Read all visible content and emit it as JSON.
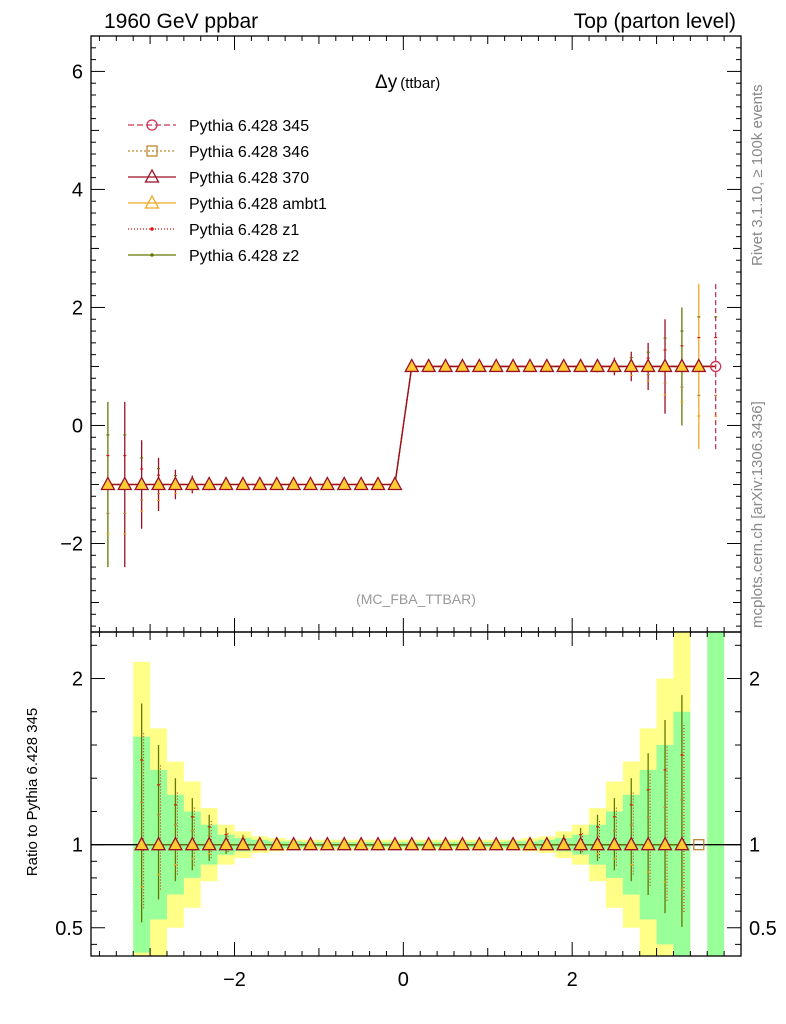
{
  "header": {
    "left": "1960 GeV ppbar",
    "right": "Top (parton level)"
  },
  "side_text": {
    "rivet": "Rivet 3.1.10, ≥ 100k events",
    "mcplots": "mcplots.cern.ch [arXiv:1306.3436]"
  },
  "colors": {
    "band_green": "#99ff99",
    "band_yellow": "#ffff88",
    "s345": "#cc3355",
    "s346": "#bb8833",
    "s370": "#991122",
    "ambt1": "#eeaa22",
    "z1": "#dd1111",
    "z2": "#667700"
  },
  "chart_data": [
    {
      "type": "line",
      "title": "Δy",
      "title_sub": "(ttbar)",
      "analysis_label": "(MC_FBA_TTBAR)",
      "xlim": [
        -3.7,
        4.0
      ],
      "ylim": [
        -3.5,
        6.6
      ],
      "yticks": [
        -2,
        0,
        2,
        4,
        6
      ],
      "grid": false,
      "legend_position": "top-left",
      "x": [
        -3.5,
        -3.3,
        -3.1,
        -2.9,
        -2.7,
        -2.5,
        -2.3,
        -2.1,
        -1.9,
        -1.7,
        -1.5,
        -1.3,
        -1.1,
        -0.9,
        -0.7,
        -0.5,
        -0.3,
        -0.1,
        0.1,
        0.3,
        0.5,
        0.7,
        0.9,
        1.1,
        1.3,
        1.5,
        1.7,
        1.9,
        2.1,
        2.3,
        2.5,
        2.7,
        2.9,
        3.1,
        3.3,
        3.5,
        3.7
      ],
      "series": [
        {
          "name": "Pythia 6.428 345",
          "key": "s345",
          "dash": "6,3",
          "marker": "circle"
        },
        {
          "name": "Pythia 6.428 346",
          "key": "s346",
          "dash": "2,2",
          "marker": "square"
        },
        {
          "name": "Pythia 6.428 370",
          "key": "s370",
          "dash": "",
          "marker": "triangle"
        },
        {
          "name": "Pythia 6.428 ambt1",
          "key": "ambt1",
          "dash": "",
          "marker": "triangle"
        },
        {
          "name": "Pythia 6.428 z1",
          "key": "z1",
          "dash": "1,2",
          "marker": "dot"
        },
        {
          "name": "Pythia 6.428 z2",
          "key": "z2",
          "dash": "",
          "marker": "dot"
        }
      ],
      "main_points": [
        {
          "x": -3.5,
          "y": -1,
          "err": 1.4,
          "series": "z2"
        },
        {
          "x": -3.3,
          "y": -1,
          "err": 1.4,
          "series": "s370"
        },
        {
          "x": -3.1,
          "y": -1,
          "err": 0.75,
          "series": "s370"
        },
        {
          "x": -2.9,
          "y": -1,
          "err": 0.45,
          "series": "s370"
        },
        {
          "x": -2.7,
          "y": -1,
          "err": 0.25,
          "series": "s370"
        },
        {
          "x": -2.5,
          "y": -1,
          "err": 0.15,
          "series": "s370"
        },
        {
          "x": -2.3,
          "y": -1,
          "err": 0.1,
          "series": "s370"
        },
        {
          "x": -2.1,
          "y": -1,
          "err": 0.05,
          "series": "s370"
        },
        {
          "x": -1.9,
          "y": -1,
          "err": 0.03,
          "series": "s370"
        },
        {
          "x": -1.7,
          "y": -1,
          "err": 0.02,
          "series": "s370"
        },
        {
          "x": -1.5,
          "y": -1,
          "err": 0.02,
          "series": "s370"
        },
        {
          "x": -1.3,
          "y": -1,
          "err": 0.02,
          "series": "s370"
        },
        {
          "x": -1.1,
          "y": -1,
          "err": 0.02,
          "series": "s370"
        },
        {
          "x": -0.9,
          "y": -1,
          "err": 0.02,
          "series": "s370"
        },
        {
          "x": -0.7,
          "y": -1,
          "err": 0.02,
          "series": "s370"
        },
        {
          "x": -0.5,
          "y": -1,
          "err": 0.02,
          "series": "s370"
        },
        {
          "x": -0.3,
          "y": -1,
          "err": 0.02,
          "series": "s370"
        },
        {
          "x": -0.1,
          "y": -1,
          "err": 0.02,
          "series": "s370"
        },
        {
          "x": 0.1,
          "y": 1,
          "err": 0.02,
          "series": "s370"
        },
        {
          "x": 0.3,
          "y": 1,
          "err": 0.02,
          "series": "s370"
        },
        {
          "x": 0.5,
          "y": 1,
          "err": 0.02,
          "series": "s370"
        },
        {
          "x": 0.7,
          "y": 1,
          "err": 0.02,
          "series": "s370"
        },
        {
          "x": 0.9,
          "y": 1,
          "err": 0.02,
          "series": "s370"
        },
        {
          "x": 1.1,
          "y": 1,
          "err": 0.02,
          "series": "s370"
        },
        {
          "x": 1.3,
          "y": 1,
          "err": 0.02,
          "series": "s370"
        },
        {
          "x": 1.5,
          "y": 1,
          "err": 0.02,
          "series": "s370"
        },
        {
          "x": 1.7,
          "y": 1,
          "err": 0.02,
          "series": "s370"
        },
        {
          "x": 1.9,
          "y": 1,
          "err": 0.03,
          "series": "s370"
        },
        {
          "x": 2.1,
          "y": 1,
          "err": 0.05,
          "series": "s370"
        },
        {
          "x": 2.3,
          "y": 1,
          "err": 0.1,
          "series": "s370"
        },
        {
          "x": 2.5,
          "y": 1,
          "err": 0.15,
          "series": "s370"
        },
        {
          "x": 2.7,
          "y": 1,
          "err": 0.25,
          "series": "s370"
        },
        {
          "x": 2.9,
          "y": 1,
          "err": 0.4,
          "series": "s370"
        },
        {
          "x": 3.1,
          "y": 1,
          "err": 0.8,
          "series": "s370"
        },
        {
          "x": 3.3,
          "y": 1,
          "err": 1.0,
          "series": "z2"
        },
        {
          "x": 3.5,
          "y": 1,
          "err": 1.4,
          "series": "ambt1"
        },
        {
          "x": 3.7,
          "y": 1,
          "err": 1.4,
          "series": "s345"
        }
      ]
    },
    {
      "type": "line",
      "ylabel": "Ratio to Pythia 6.428 345",
      "xlim": [
        -3.7,
        4.0
      ],
      "ylim": [
        0.33,
        2.28
      ],
      "xticks": [
        -2,
        0,
        2
      ],
      "yticks": [
        0.5,
        1,
        2
      ],
      "reference": 1,
      "bands": [
        {
          "x": -3.1,
          "green": 0.65,
          "yellow": 1.1
        },
        {
          "x": -2.9,
          "green": 0.45,
          "yellow": 0.7
        },
        {
          "x": -2.7,
          "green": 0.3,
          "yellow": 0.5
        },
        {
          "x": -2.5,
          "green": 0.2,
          "yellow": 0.38
        },
        {
          "x": -2.3,
          "green": 0.12,
          "yellow": 0.22
        },
        {
          "x": -2.1,
          "green": 0.06,
          "yellow": 0.12
        },
        {
          "x": -1.9,
          "green": 0.04,
          "yellow": 0.08
        },
        {
          "x": -1.7,
          "green": 0.03,
          "yellow": 0.05
        },
        {
          "x": -1.5,
          "green": 0.02,
          "yellow": 0.04
        },
        {
          "x": -1.3,
          "green": 0.02,
          "yellow": 0.03
        },
        {
          "x": -1.1,
          "green": 0.015,
          "yellow": 0.03
        },
        {
          "x": -0.9,
          "green": 0.015,
          "yellow": 0.03
        },
        {
          "x": -0.7,
          "green": 0.015,
          "yellow": 0.03
        },
        {
          "x": -0.5,
          "green": 0.015,
          "yellow": 0.03
        },
        {
          "x": -0.3,
          "green": 0.015,
          "yellow": 0.03
        },
        {
          "x": -0.1,
          "green": 0.015,
          "yellow": 0.03
        },
        {
          "x": 0.1,
          "green": 0.015,
          "yellow": 0.03
        },
        {
          "x": 0.3,
          "green": 0.015,
          "yellow": 0.03
        },
        {
          "x": 0.5,
          "green": 0.015,
          "yellow": 0.03
        },
        {
          "x": 0.7,
          "green": 0.015,
          "yellow": 0.03
        },
        {
          "x": 0.9,
          "green": 0.015,
          "yellow": 0.03
        },
        {
          "x": 1.1,
          "green": 0.015,
          "yellow": 0.03
        },
        {
          "x": 1.3,
          "green": 0.02,
          "yellow": 0.03
        },
        {
          "x": 1.5,
          "green": 0.02,
          "yellow": 0.04
        },
        {
          "x": 1.7,
          "green": 0.03,
          "yellow": 0.05
        },
        {
          "x": 1.9,
          "green": 0.04,
          "yellow": 0.08
        },
        {
          "x": 2.1,
          "green": 0.06,
          "yellow": 0.12
        },
        {
          "x": 2.3,
          "green": 0.12,
          "yellow": 0.22
        },
        {
          "x": 2.5,
          "green": 0.2,
          "yellow": 0.38
        },
        {
          "x": 2.7,
          "green": 0.3,
          "yellow": 0.5
        },
        {
          "x": 2.9,
          "green": 0.45,
          "yellow": 0.7
        },
        {
          "x": 3.1,
          "green": 0.6,
          "yellow": 1.0
        },
        {
          "x": 3.3,
          "green": 0.8,
          "yellow": 1.3
        },
        {
          "x": 3.7,
          "green": 1.3,
          "yellow": 1.3
        }
      ],
      "ratio_points": [
        {
          "x": -3.1,
          "err": 0.85
        },
        {
          "x": -2.9,
          "err": 0.6
        },
        {
          "x": -2.7,
          "err": 0.4
        },
        {
          "x": -2.5,
          "err": 0.28
        },
        {
          "x": -2.3,
          "err": 0.18
        },
        {
          "x": -2.1,
          "err": 0.1
        },
        {
          "x": -1.9,
          "err": 0.06
        },
        {
          "x": -1.7,
          "err": 0.04
        },
        {
          "x": -1.5,
          "err": 0.03
        },
        {
          "x": -1.3,
          "err": 0.02
        },
        {
          "x": -1.1,
          "err": 0.02
        },
        {
          "x": -0.9,
          "err": 0.02
        },
        {
          "x": -0.7,
          "err": 0.02
        },
        {
          "x": -0.5,
          "err": 0.02
        },
        {
          "x": -0.3,
          "err": 0.02
        },
        {
          "x": -0.1,
          "err": 0.02
        },
        {
          "x": 0.1,
          "err": 0.02
        },
        {
          "x": 0.3,
          "err": 0.02
        },
        {
          "x": 0.5,
          "err": 0.02
        },
        {
          "x": 0.7,
          "err": 0.02
        },
        {
          "x": 0.9,
          "err": 0.02
        },
        {
          "x": 1.1,
          "err": 0.02
        },
        {
          "x": 1.3,
          "err": 0.02
        },
        {
          "x": 1.5,
          "err": 0.03
        },
        {
          "x": 1.7,
          "err": 0.04
        },
        {
          "x": 1.9,
          "err": 0.06
        },
        {
          "x": 2.1,
          "err": 0.1
        },
        {
          "x": 2.3,
          "err": 0.18
        },
        {
          "x": 2.5,
          "err": 0.28
        },
        {
          "x": 2.7,
          "err": 0.4
        },
        {
          "x": 2.9,
          "err": 0.55
        },
        {
          "x": 3.1,
          "err": 0.75
        },
        {
          "x": 3.3,
          "err": 0.9
        }
      ]
    }
  ]
}
